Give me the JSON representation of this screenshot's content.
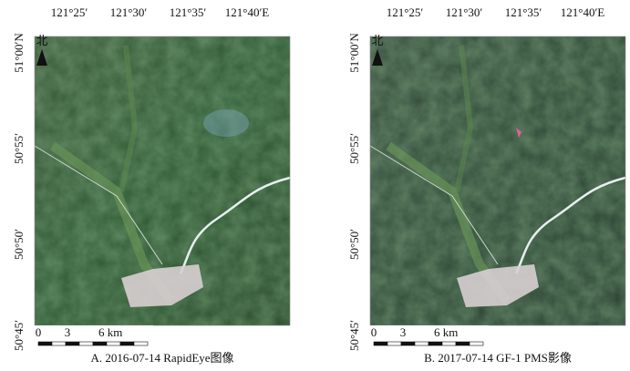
{
  "panels": [
    {
      "lon_labels": [
        "121°25′",
        "121°30′",
        "121°35′",
        "121°40′E"
      ],
      "lat_labels": [
        "51°00′N",
        "50°55′",
        "50°50′",
        "50°45′"
      ],
      "north": "北",
      "scale_labels": [
        "0",
        "3",
        "6 km"
      ],
      "caption": "A. 2016-07-14 RapidEye图像"
    },
    {
      "lon_labels": [
        "121°25′",
        "121°30′",
        "121°35′",
        "121°40′E"
      ],
      "lat_labels": [
        "51°00′N",
        "50°55′",
        "50°50′",
        "50°45′"
      ],
      "north": "北",
      "scale_labels": [
        "0",
        "3",
        "6 km"
      ],
      "caption": "B. 2017-07-14 GF-1 PMS影像"
    }
  ]
}
